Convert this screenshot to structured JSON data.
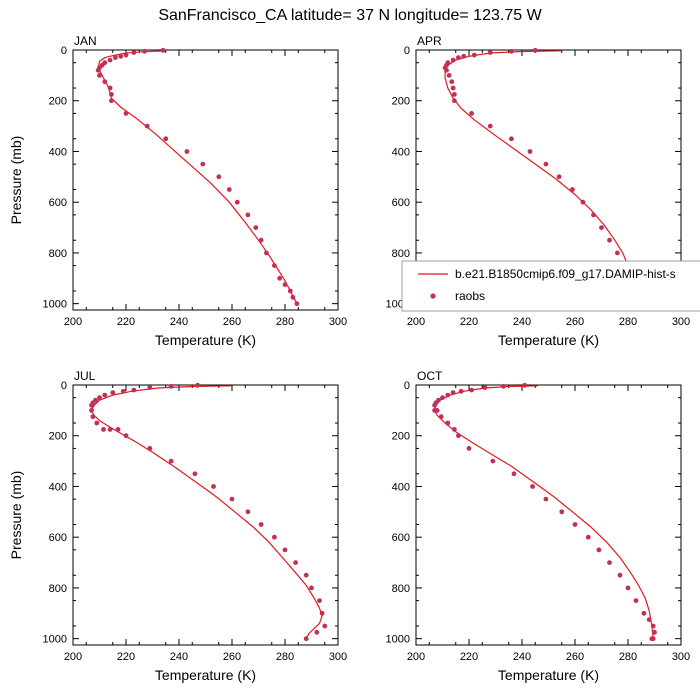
{
  "title": "SanFrancisco_CA  latitude= 37 N longitude= 123.75 W",
  "colors": {
    "model": "#e31a1c",
    "raobs": "#c0305a"
  },
  "legend": {
    "model_label": "b.e21.B1850cmip6.f09_g17.DAMIP-hist-s",
    "raobs_label": "raobs"
  },
  "chart_data": [
    {
      "type": "line",
      "panel": "JAN",
      "xlabel": "Temperature (K)",
      "ylabel": "Pressure (mb)",
      "xlim": [
        200,
        300
      ],
      "ylim": [
        1025,
        0
      ],
      "xticks": [
        200,
        220,
        240,
        260,
        280,
        300
      ],
      "yticks": [
        0,
        200,
        400,
        600,
        800,
        1000
      ],
      "series": [
        {
          "kind": "line",
          "x": [
            235,
            226,
            220,
            216,
            212,
            210,
            209.5,
            210.5,
            211.5,
            212.5,
            213.5,
            214.5,
            218,
            224,
            231,
            238,
            245,
            252,
            259,
            265,
            270,
            274,
            277,
            280,
            282.5,
            284.5
          ],
          "y": [
            3,
            7,
            12,
            20,
            30,
            45,
            70,
            90,
            110,
            130,
            150,
            190,
            225,
            270,
            330,
            395,
            460,
            525,
            600,
            680,
            750,
            810,
            860,
            910,
            960,
            1000
          ]
        },
        {
          "kind": "points",
          "x": [
            234,
            227,
            223,
            220,
            218,
            216,
            214,
            212,
            211,
            210,
            209.5,
            210,
            212,
            214,
            214.5,
            214.5,
            220,
            228,
            235,
            243,
            249,
            255,
            259,
            262,
            266,
            269,
            271,
            273,
            276,
            278,
            280,
            282,
            283,
            284.5
          ],
          "y": [
            1,
            5,
            10,
            20,
            25,
            30,
            40,
            50,
            60,
            70,
            80,
            100,
            125,
            150,
            175,
            200,
            250,
            300,
            350,
            400,
            450,
            500,
            550,
            600,
            650,
            700,
            750,
            800,
            850,
            900,
            925,
            950,
            975,
            1000
          ]
        }
      ]
    },
    {
      "type": "line",
      "panel": "APR",
      "xlabel": "Temperature (K)",
      "ylabel": "",
      "xlim": [
        200,
        300
      ],
      "ylim": [
        1025,
        0
      ],
      "xticks": [
        200,
        220,
        240,
        260,
        280,
        300
      ],
      "yticks": [
        0,
        200,
        400,
        600,
        800,
        1000
      ],
      "series": [
        {
          "kind": "line",
          "x": [
            255,
            240,
            228,
            220,
            215,
            212,
            211,
            211,
            212,
            214,
            217,
            222,
            229,
            237,
            245,
            253,
            260,
            266,
            271,
            275,
            278,
            280,
            282,
            283,
            284
          ],
          "y": [
            3,
            6,
            12,
            25,
            40,
            60,
            80,
            110,
            150,
            190,
            230,
            275,
            330,
            390,
            450,
            510,
            570,
            630,
            690,
            750,
            800,
            850,
            900,
            950,
            1000
          ]
        },
        {
          "kind": "points",
          "x": [
            245,
            236,
            228,
            222,
            218,
            216,
            214,
            212,
            211.5,
            211,
            211.5,
            212.5,
            213.5,
            214,
            214.5,
            214.5,
            221,
            228,
            236,
            243,
            249,
            254,
            259,
            263,
            267,
            270,
            273,
            276,
            278,
            280.5,
            282,
            283,
            285,
            285.5
          ],
          "y": [
            1,
            5,
            10,
            20,
            25,
            30,
            40,
            50,
            60,
            70,
            80,
            100,
            125,
            150,
            175,
            200,
            250,
            300,
            350,
            400,
            450,
            500,
            550,
            600,
            650,
            700,
            750,
            800,
            850,
            900,
            925,
            950,
            975,
            1000
          ]
        }
      ]
    },
    {
      "type": "line",
      "panel": "JUL",
      "xlabel": "Temperature (K)",
      "ylabel": "Pressure (mb)",
      "xlim": [
        200,
        300
      ],
      "ylim": [
        1025,
        0
      ],
      "xticks": [
        200,
        220,
        240,
        260,
        280,
        300
      ],
      "yticks": [
        0,
        200,
        400,
        600,
        800,
        1000
      ],
      "series": [
        {
          "kind": "line",
          "x": [
            260,
            245,
            232,
            222,
            215,
            210,
            208,
            207,
            208,
            210,
            213,
            217,
            223,
            230,
            238,
            246,
            254,
            261,
            268,
            274,
            279,
            284,
            288,
            291,
            293,
            294,
            293,
            291,
            289,
            288
          ],
          "y": [
            3,
            6,
            12,
            25,
            40,
            60,
            80,
            100,
            120,
            140,
            160,
            185,
            220,
            265,
            320,
            380,
            440,
            500,
            560,
            620,
            680,
            740,
            790,
            840,
            880,
            910,
            940,
            960,
            980,
            1000
          ]
        },
        {
          "kind": "points",
          "x": [
            247,
            237,
            229,
            223,
            219,
            215,
            212,
            210,
            208.5,
            207.5,
            207,
            207,
            207.5,
            209,
            211.5,
            214,
            217,
            220,
            229,
            237,
            246,
            253,
            260,
            266,
            271,
            276,
            280,
            284,
            288,
            290,
            293,
            294,
            295,
            292,
            288
          ],
          "y": [
            1,
            5,
            10,
            20,
            25,
            30,
            40,
            50,
            60,
            70,
            80,
            100,
            125,
            150,
            175,
            175,
            175,
            200,
            250,
            300,
            350,
            400,
            450,
            500,
            550,
            600,
            650,
            700,
            750,
            800,
            850,
            900,
            950,
            975,
            1000
          ]
        }
      ]
    },
    {
      "type": "line",
      "panel": "OCT",
      "xlabel": "Temperature (K)",
      "ylabel": "",
      "xlim": [
        200,
        300
      ],
      "ylim": [
        1025,
        0
      ],
      "xticks": [
        200,
        220,
        240,
        260,
        280,
        300
      ],
      "yticks": [
        0,
        200,
        400,
        600,
        800,
        1000
      ],
      "series": [
        {
          "kind": "line",
          "x": [
            246,
            235,
            226,
            218,
            213,
            209,
            207.5,
            207,
            208,
            211,
            215,
            221,
            228,
            236,
            244,
            252,
            259,
            266,
            272,
            277,
            281,
            284,
            286.5,
            288,
            289,
            289.5
          ],
          "y": [
            3,
            6,
            12,
            25,
            40,
            60,
            80,
            100,
            120,
            150,
            185,
            225,
            270,
            320,
            380,
            440,
            500,
            560,
            620,
            680,
            740,
            790,
            840,
            890,
            950,
            1000
          ]
        },
        {
          "kind": "points",
          "x": [
            241,
            233,
            226,
            221,
            217,
            214,
            212,
            210,
            208.5,
            207.5,
            207,
            207,
            208,
            209.5,
            212,
            214.5,
            216,
            220,
            229,
            237,
            244,
            249,
            255,
            260,
            265,
            269,
            273,
            277,
            280,
            283,
            286,
            288,
            289.5,
            290,
            289.5,
            289
          ],
          "y": [
            1,
            5,
            10,
            20,
            25,
            30,
            40,
            50,
            60,
            70,
            80,
            100,
            100,
            125,
            150,
            175,
            200,
            250,
            300,
            350,
            400,
            450,
            500,
            550,
            600,
            650,
            700,
            750,
            800,
            850,
            900,
            925,
            950,
            975,
            1000,
            1000
          ]
        }
      ]
    }
  ]
}
